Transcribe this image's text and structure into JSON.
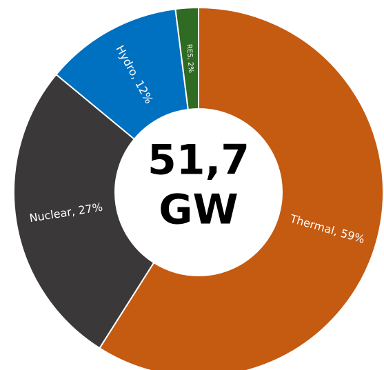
{
  "chart_data": {
    "type": "donut",
    "categories": [
      "Thermal",
      "Nuclear",
      "Hydro",
      "RES"
    ],
    "values": [
      59,
      27,
      12,
      2
    ],
    "value_labels": [
      "Thermal, 59%",
      "Nuclear, 27%",
      "Hydro, 12%",
      "RES, 2%"
    ],
    "colors": [
      "#c55a11",
      "#3a3838",
      "#0070c0",
      "#2f6b22"
    ],
    "center_value": "51,7",
    "center_unit": "GW"
  }
}
